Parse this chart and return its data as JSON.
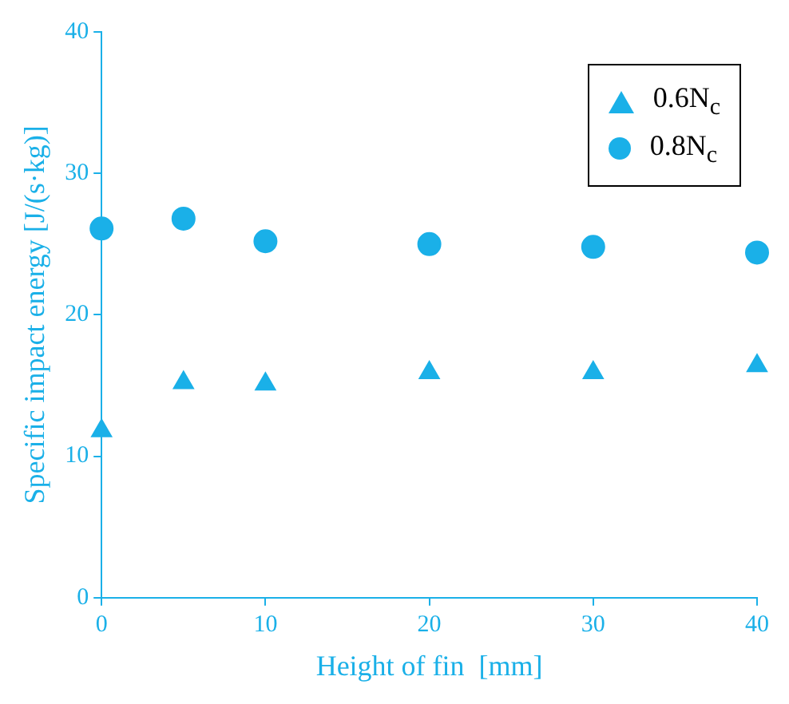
{
  "chart_data": {
    "type": "scatter",
    "xlabel": "Height of fin  [mm]",
    "ylabel": "Specific impact energy [J/(s·kg)]",
    "x": [
      0,
      5,
      10,
      20,
      30,
      40
    ],
    "series": [
      {
        "name": "0.6N$_{c}$",
        "color": "#1ab0e8",
        "marker": "triangle",
        "values": [
          11.8,
          15.2,
          15.1,
          15.9,
          15.9,
          16.4
        ]
      },
      {
        "name": "0.8N$_{c}$",
        "color": "#1ab0e8",
        "marker": "circle",
        "values": [
          26.1,
          26.8,
          25.2,
          25.0,
          24.8,
          24.4
        ]
      }
    ],
    "xlim": [
      0,
      40
    ],
    "xticks": [
      0,
      10,
      20,
      30,
      40
    ],
    "ylim": [
      0,
      40
    ],
    "yticks": [
      0,
      10,
      20,
      30,
      40
    ],
    "grid": false,
    "legend": "top right"
  }
}
